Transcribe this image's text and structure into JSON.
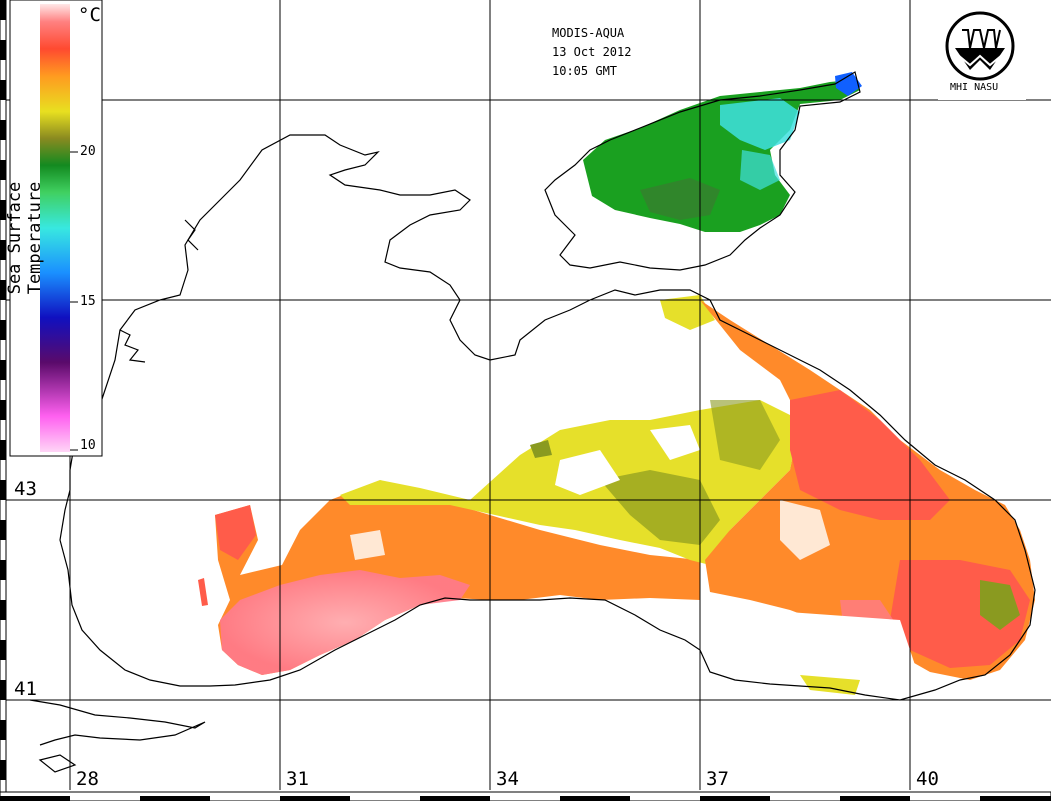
{
  "header": {
    "instrument": "MODIS-AQUA",
    "date": "13 Oct 2012",
    "time": "10:05 GMT"
  },
  "logo": {
    "text": "MHI NASU"
  },
  "legend": {
    "title": "Sea Surface Temperature",
    "unit": "°C",
    "ticks": [
      "20",
      "15",
      "10"
    ],
    "colors": [
      "#ffd6f6",
      "#ff60f0",
      "#5a0a6a",
      "#1010c0",
      "#1a90ff",
      "#38e8e0",
      "#40d060",
      "#138a20",
      "#8a8a20",
      "#e8e020",
      "#ff9a20",
      "#ff4a30",
      "#ff8080",
      "#ffe8e8"
    ]
  },
  "axes": {
    "longitudes": [
      "28",
      "31",
      "34",
      "37",
      "40"
    ],
    "latitudes": [
      "43",
      "41"
    ]
  },
  "colors": {
    "coast": "#000000",
    "grid": "#000000",
    "warm_red": "#ff5c4a",
    "orange": "#ff8a2a",
    "pink": "#ff8a9a",
    "yellow": "#e6e02a",
    "olive": "#8a9a20",
    "green": "#1aa020",
    "dark_green": "#3a7a30",
    "cyan": "#40e0e0",
    "blue": "#1060ff"
  }
}
